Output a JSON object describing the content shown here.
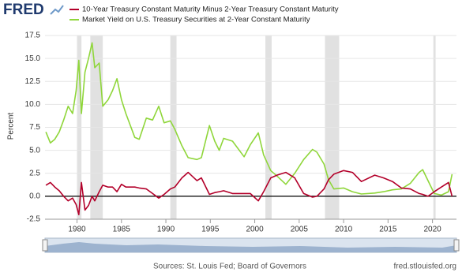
{
  "logo": "FRED",
  "chart_data": {
    "type": "line",
    "x": [
      1976.5,
      1977.0,
      1977.5,
      1978.0,
      1978.5,
      1979.0,
      1979.5,
      1979.9,
      1980.2,
      1980.5,
      1980.9,
      1981.3,
      1981.7,
      1982.0,
      1982.5,
      1982.9,
      1983.5,
      1984.0,
      1984.5,
      1985.0,
      1985.5,
      1986.5,
      1987.0,
      1987.8,
      1988.5,
      1989.2,
      1989.8,
      1990.5,
      1991.0,
      1991.8,
      1992.5,
      1993.5,
      1994.0,
      1994.9,
      1995.5,
      1996.0,
      1996.5,
      1997.5,
      1998.8,
      1999.5,
      2000.4,
      2001.0,
      2001.8,
      2002.5,
      2003.5,
      2004.5,
      2005.5,
      2006.5,
      2007.0,
      2007.8,
      2008.3,
      2008.9,
      2010.0,
      2011.0,
      2012.0,
      2013.5,
      2014.5,
      2015.5,
      2016.5,
      2017.5,
      2018.5,
      2018.9,
      2019.5,
      2020.2,
      2021.0,
      2021.8,
      2022.2
    ],
    "series": [
      {
        "name": "10-Year Treasury Constant Maturity Minus 2-Year Treasury Constant Maturity",
        "color": "#b3002a",
        "values": [
          1.2,
          1.5,
          1.0,
          0.6,
          0.0,
          -0.5,
          -0.2,
          -0.9,
          -2.0,
          1.5,
          -1.5,
          -1.0,
          0.0,
          -0.5,
          0.5,
          1.2,
          1.0,
          1.0,
          0.5,
          1.3,
          1.0,
          1.0,
          0.9,
          0.8,
          0.3,
          -0.2,
          0.2,
          0.8,
          1.0,
          2.0,
          2.6,
          1.7,
          2.0,
          0.2,
          0.4,
          0.5,
          0.6,
          0.3,
          0.3,
          0.3,
          -0.5,
          0.5,
          2.0,
          2.3,
          2.6,
          2.0,
          0.3,
          -0.1,
          0.0,
          0.8,
          1.8,
          2.4,
          2.8,
          2.6,
          1.6,
          2.3,
          2.0,
          1.6,
          0.9,
          0.8,
          0.3,
          0.2,
          0.0,
          0.5,
          1.0,
          1.5,
          0.0
        ]
      },
      {
        "name": "Market Yield on U.S. Treasury Securities at 2-Year Constant Maturity",
        "color": "#8fd63a",
        "values": [
          7.0,
          5.8,
          6.2,
          7.0,
          8.3,
          9.8,
          9.0,
          11.5,
          14.8,
          9.0,
          13.5,
          15.0,
          16.7,
          14.0,
          14.5,
          9.8,
          10.5,
          11.5,
          12.8,
          10.5,
          9.0,
          6.4,
          6.2,
          8.5,
          8.3,
          9.8,
          8.0,
          8.2,
          7.3,
          5.5,
          4.2,
          4.0,
          4.2,
          7.7,
          6.0,
          5.0,
          6.3,
          6.0,
          4.3,
          5.6,
          6.9,
          4.5,
          2.8,
          2.2,
          1.3,
          2.5,
          4.0,
          5.1,
          4.8,
          3.5,
          1.8,
          0.8,
          0.9,
          0.5,
          0.25,
          0.35,
          0.5,
          0.7,
          0.8,
          1.4,
          2.6,
          2.9,
          1.7,
          0.3,
          0.13,
          0.5,
          2.4
        ]
      }
    ],
    "recessions": [
      [
        1980.0,
        1980.5
      ],
      [
        1981.5,
        1982.9
      ],
      [
        1990.5,
        1991.2
      ],
      [
        2001.2,
        2001.9
      ],
      [
        2007.9,
        2009.5
      ],
      [
        2020.1,
        2020.35
      ]
    ],
    "recession_color": "#e1e1e1",
    "baseline": 0,
    "y_label": "Percent",
    "xlim": [
      1976.4,
      2022.7
    ],
    "xticks": [
      1980,
      1985,
      1990,
      1995,
      2000,
      2005,
      2010,
      2015,
      2020
    ],
    "ylim": [
      -2.5,
      17.5
    ],
    "yticks": [
      -2.5,
      {
        "value": 0,
        "label": "0.0"
      },
      2.5,
      {
        "value": 5,
        "label": "5.0"
      },
      7.5,
      {
        "value": 10,
        "label": "10.0"
      },
      12.5,
      {
        "value": 15,
        "label": "15.0"
      },
      17.5
    ],
    "grid": true
  },
  "footer": {
    "source": "Sources: St. Louis Fed; Board of Governors",
    "url": "fred.stlouisfed.org"
  }
}
